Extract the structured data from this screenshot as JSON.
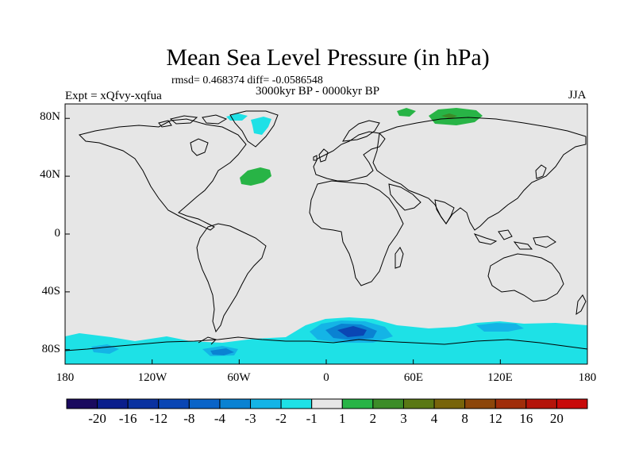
{
  "title": "Mean Sea Level Pressure (in hPa)",
  "stats": "rmsd= 0.468374  diff= -0.0586548",
  "period": "3000kyr BP - 0000kyr BP",
  "experiment": "Expt = xQfvy-xqfua",
  "season": "JJA",
  "colors": {
    "land_ocean_background": "#e6e6e6",
    "coastline": "#000000",
    "frame": "#000000"
  },
  "map": {
    "lat_labels": [
      "80N",
      "40N",
      "0",
      "40S",
      "80S"
    ],
    "lon_labels": [
      "180",
      "120W",
      "60W",
      "0",
      "60E",
      "120E",
      "180"
    ],
    "lat_ticks": [
      80,
      40,
      0,
      -40,
      -80
    ],
    "lon_ticks": [
      -180,
      -120,
      -60,
      0,
      60,
      120,
      180
    ],
    "lon_range": [
      -180,
      180
    ],
    "lat_range": [
      -90,
      90
    ]
  },
  "colorbar": {
    "labels": [
      "-20",
      "-16",
      "-12",
      "-8",
      "-4",
      "-3",
      "-2",
      "-1",
      "1",
      "2",
      "3",
      "4",
      "8",
      "12",
      "16",
      "20"
    ],
    "colors": [
      "#1a0a5e",
      "#0a1e8c",
      "#0a32a0",
      "#0a46b4",
      "#0a64c8",
      "#0a82d2",
      "#14b4e6",
      "#1ee1e6",
      "#e6e6e6",
      "#28b446",
      "#3c8c28",
      "#5a7814",
      "#78640a",
      "#8c460a",
      "#a02d0a",
      "#b4140a",
      "#c80a0a"
    ]
  }
}
